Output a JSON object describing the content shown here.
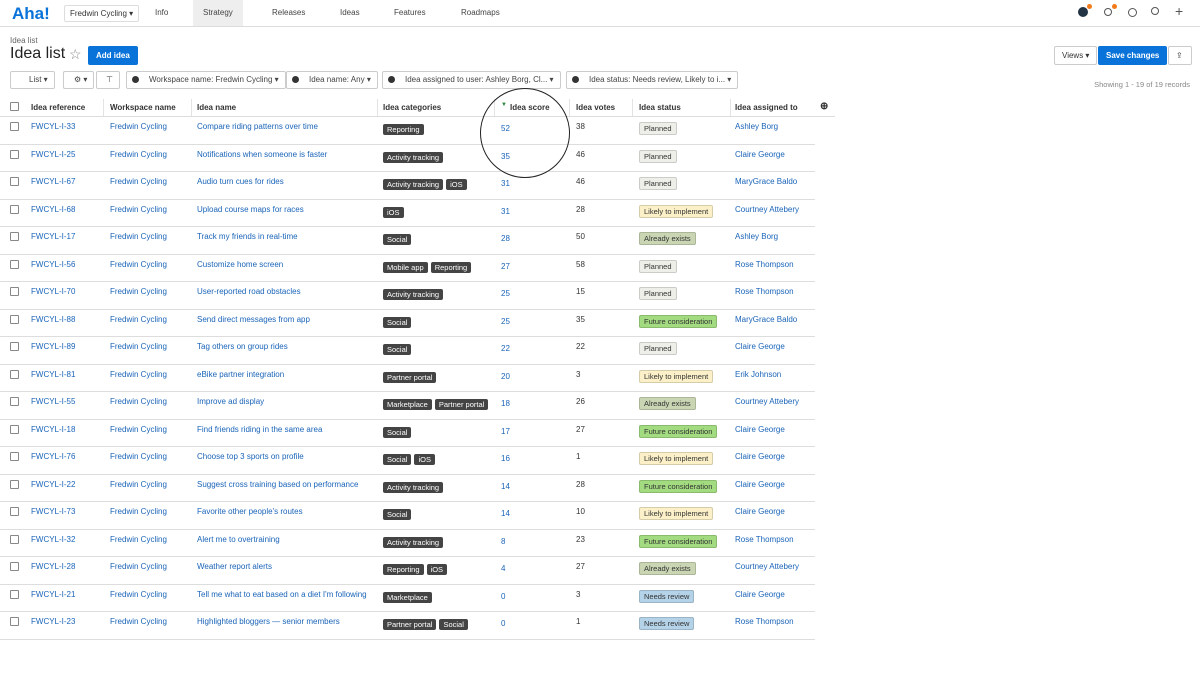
{
  "nav": {
    "logo": "Aha!",
    "workspace": "Fredwin Cycling",
    "tabs": [
      "Info",
      "Strategy",
      "Releases",
      "Ideas",
      "Features",
      "Roadmaps"
    ],
    "active_tab": 1
  },
  "header": {
    "breadcrumb": "Idea list",
    "title": "Idea list",
    "add_button": "Add idea",
    "views_button": "Views",
    "save_button": "Save changes"
  },
  "filters": {
    "view": "List",
    "items": [
      "Workspace name: Fredwin Cycling",
      "Idea name: Any",
      "Idea assigned to user: Ashley Borg, Cl...",
      "Idea status: Needs review, Likely to i..."
    ],
    "records": "Showing 1 - 19 of 19 records"
  },
  "status_colors": {
    "Planned": "#efefea",
    "Likely to implement": "#fbf0c8",
    "Already exists": "#c9d5b3",
    "Future consideration": "#a3dc80",
    "Needs review": "#b5d3e8"
  },
  "table": {
    "columns": [
      "Idea reference",
      "Workspace name",
      "Idea name",
      "Idea categories",
      "Idea score",
      "Idea votes",
      "Idea status",
      "Idea assigned to"
    ],
    "rows": [
      [
        "FWCYL-I-33",
        "Fredwin Cycling",
        "Compare riding patterns over time",
        [
          "Reporting"
        ],
        "52",
        "38",
        "Planned",
        "Ashley Borg"
      ],
      [
        "FWCYL-I-25",
        "Fredwin Cycling",
        "Notifications when someone is faster",
        [
          "Activity tracking"
        ],
        "35",
        "46",
        "Planned",
        "Claire George"
      ],
      [
        "FWCYL-I-67",
        "Fredwin Cycling",
        "Audio turn cues for rides",
        [
          "Activity tracking",
          "iOS"
        ],
        "31",
        "46",
        "Planned",
        "MaryGrace Baldo"
      ],
      [
        "FWCYL-I-68",
        "Fredwin Cycling",
        "Upload course maps for races",
        [
          "iOS"
        ],
        "31",
        "28",
        "Likely to implement",
        "Courtney Attebery"
      ],
      [
        "FWCYL-I-17",
        "Fredwin Cycling",
        "Track my friends in real-time",
        [
          "Social"
        ],
        "28",
        "50",
        "Already exists",
        "Ashley Borg"
      ],
      [
        "FWCYL-I-56",
        "Fredwin Cycling",
        "Customize home screen",
        [
          "Mobile app",
          "Reporting"
        ],
        "27",
        "58",
        "Planned",
        "Rose Thompson"
      ],
      [
        "FWCYL-I-70",
        "Fredwin Cycling",
        "User-reported road obstacles",
        [
          "Activity tracking"
        ],
        "25",
        "15",
        "Planned",
        "Rose Thompson"
      ],
      [
        "FWCYL-I-88",
        "Fredwin Cycling",
        "Send direct messages from app",
        [
          "Social"
        ],
        "25",
        "35",
        "Future consideration",
        "MaryGrace Baldo"
      ],
      [
        "FWCYL-I-89",
        "Fredwin Cycling",
        "Tag others on group rides",
        [
          "Social"
        ],
        "22",
        "22",
        "Planned",
        "Claire George"
      ],
      [
        "FWCYL-I-81",
        "Fredwin Cycling",
        "eBike partner integration",
        [
          "Partner portal"
        ],
        "20",
        "3",
        "Likely to implement",
        "Erik Johnson"
      ],
      [
        "FWCYL-I-55",
        "Fredwin Cycling",
        "Improve ad display",
        [
          "Marketplace",
          "Partner portal"
        ],
        "18",
        "26",
        "Already exists",
        "Courtney Attebery"
      ],
      [
        "FWCYL-I-18",
        "Fredwin Cycling",
        "Find friends riding in the same area",
        [
          "Social"
        ],
        "17",
        "27",
        "Future consideration",
        "Claire George"
      ],
      [
        "FWCYL-I-76",
        "Fredwin Cycling",
        "Choose top 3 sports on profile",
        [
          "Social",
          "iOS"
        ],
        "16",
        "1",
        "Likely to implement",
        "Claire George"
      ],
      [
        "FWCYL-I-22",
        "Fredwin Cycling",
        "Suggest cross training based on performance",
        [
          "Activity tracking"
        ],
        "14",
        "28",
        "Future consideration",
        "Claire George"
      ],
      [
        "FWCYL-I-73",
        "Fredwin Cycling",
        "Favorite other people's routes",
        [
          "Social"
        ],
        "14",
        "10",
        "Likely to implement",
        "Claire George"
      ],
      [
        "FWCYL-I-32",
        "Fredwin Cycling",
        "Alert me to overtraining",
        [
          "Activity tracking"
        ],
        "8",
        "23",
        "Future consideration",
        "Rose Thompson"
      ],
      [
        "FWCYL-I-28",
        "Fredwin Cycling",
        "Weather report alerts",
        [
          "Reporting",
          "iOS"
        ],
        "4",
        "27",
        "Already exists",
        "Courtney Attebery"
      ],
      [
        "FWCYL-I-21",
        "Fredwin Cycling",
        "Tell me what to eat based on a diet I'm following",
        [
          "Marketplace"
        ],
        "0",
        "3",
        "Needs review",
        "Claire George"
      ],
      [
        "FWCYL-I-23",
        "Fredwin Cycling",
        "Highlighted bloggers — senior members",
        [
          "Partner portal",
          "Social"
        ],
        "0",
        "1",
        "Needs review",
        "Rose Thompson"
      ]
    ]
  }
}
